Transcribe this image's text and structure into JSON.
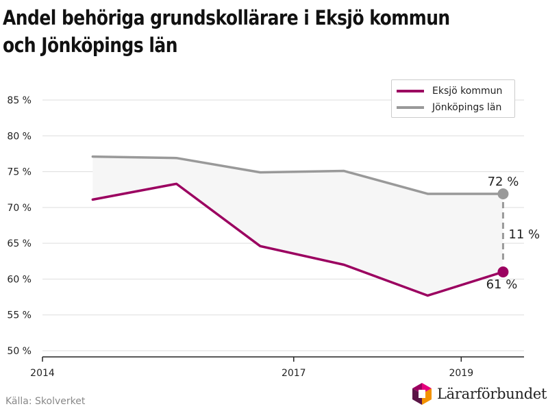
{
  "header": {
    "title": "Andel behöriga grundskollärare i Eksjö kommun och Jönköpings län"
  },
  "chart_data": {
    "type": "line",
    "title": "Andel behöriga grundskollärare i Eksjö kommun och Jönköpings län",
    "xlabel": "",
    "ylabel": "",
    "x": [
      2014.6,
      2015.6,
      2016.6,
      2017.6,
      2018.6,
      2019.5
    ],
    "xlim": [
      2014.0,
      2019.75
    ],
    "ylim": [
      50,
      85
    ],
    "x_ticks": [
      2014,
      2017,
      2019
    ],
    "x_tick_labels": [
      "2014",
      "2017",
      "2019"
    ],
    "y_ticks": [
      50,
      55,
      60,
      65,
      70,
      75,
      80,
      85
    ],
    "y_tick_labels": [
      "50 %",
      "55 %",
      "60 %",
      "65 %",
      "70 %",
      "75 %",
      "80 %",
      "85 %"
    ],
    "grid": true,
    "legend_position": "top-right",
    "series": [
      {
        "name": "Eksjö kommun",
        "color": "#9b0060",
        "values": [
          71.1,
          73.3,
          64.6,
          62.0,
          57.7,
          61.0
        ],
        "end_label": "61 %"
      },
      {
        "name": "Jönköpings län",
        "color": "#999999",
        "values": [
          77.1,
          76.9,
          74.9,
          75.1,
          71.9,
          71.9
        ],
        "end_label": "72 %"
      }
    ],
    "gap_label": "11 %",
    "colors": {
      "fill": "#f6f6f6",
      "grid": "#dddddd",
      "axis": "#222222",
      "gap": "#999999"
    }
  },
  "footer": {
    "source": "Källa: Skolverket",
    "logo_name": "Lärarförbundet",
    "logo_colors": [
      "#e6007e",
      "#9b0060",
      "#5a1546",
      "#f39200"
    ]
  }
}
